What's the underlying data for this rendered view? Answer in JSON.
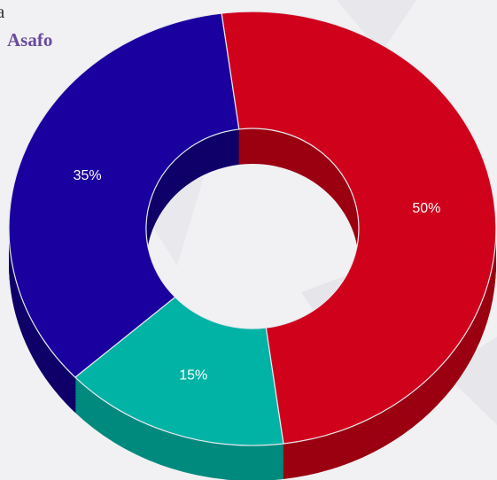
{
  "chart_data": {
    "type": "donut",
    "texts": [
      "a",
      "Asafo"
    ],
    "values": [
      50,
      15,
      35
    ],
    "value_labels": [
      "50%",
      "15%",
      "35%"
    ],
    "colors": [
      "#d0021b",
      "#00b3a4",
      "#1a009e"
    ],
    "side_colors": [
      "#9a0010",
      "#008a7e",
      "#0f0068"
    ]
  }
}
